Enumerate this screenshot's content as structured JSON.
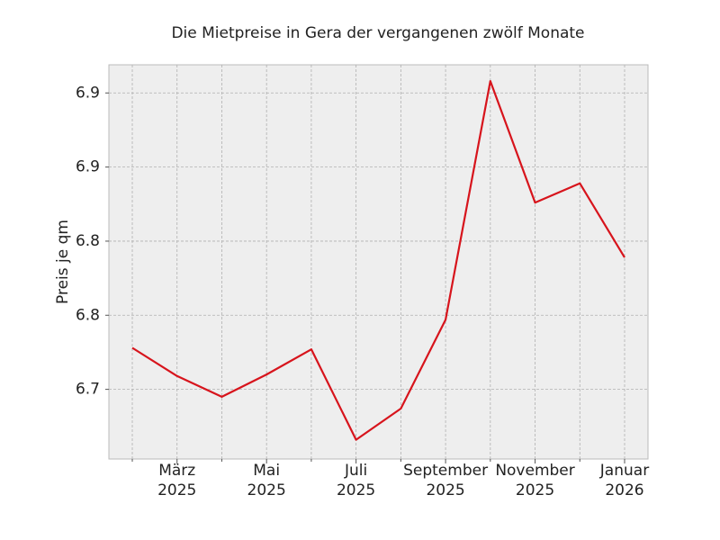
{
  "chart_data": {
    "type": "line",
    "title": "Die Mietpreise in Gera der vergangenen zwölf Monate",
    "y_label": "Preis je qm",
    "categories": [
      null,
      "März\n2025",
      null,
      "Mai\n2025",
      null,
      "Juli\n2025",
      null,
      "September\n2025",
      null,
      "November\n2025",
      null,
      "Januar\n2026"
    ],
    "series": [
      {
        "name": "Preis je qm",
        "color": "#d7141c",
        "values": [
          6.728,
          6.709,
          6.695,
          6.71,
          6.727,
          6.666,
          6.687,
          6.747,
          6.908,
          6.826,
          6.839,
          6.789
        ]
      }
    ],
    "ylim": [
      6.653,
      6.919
    ],
    "yticks": [
      {
        "value": 6.7,
        "label": "6.7"
      },
      {
        "value": 6.75,
        "label": "6.8"
      },
      {
        "value": 6.8,
        "label": "6.8"
      },
      {
        "value": 6.85,
        "label": "6.9"
      },
      {
        "value": 6.9,
        "label": "6.9"
      }
    ],
    "grid": true
  }
}
